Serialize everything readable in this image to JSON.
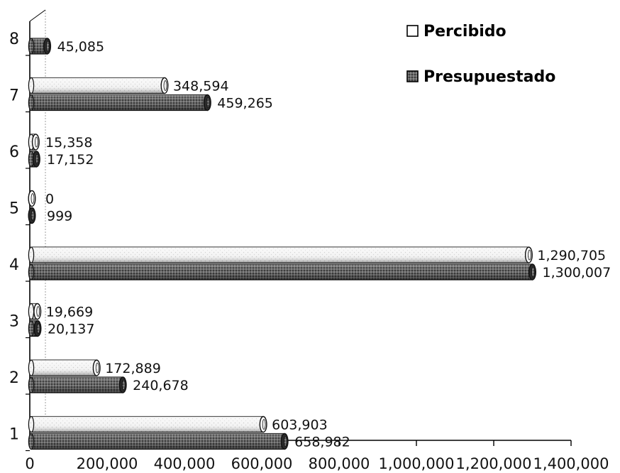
{
  "chart_data": {
    "type": "bar",
    "orientation": "horizontal",
    "categories": [
      "1",
      "2",
      "3",
      "4",
      "5",
      "6",
      "7",
      "8"
    ],
    "series": [
      {
        "name": "Percibido",
        "values": [
          603903,
          172889,
          19669,
          1290705,
          0,
          15358,
          348594,
          null
        ],
        "labels": [
          "603,903",
          "172,889",
          "19,669",
          "1,290,705",
          "0",
          "15,358",
          "348,594",
          ""
        ],
        "color": "#f4f4f4"
      },
      {
        "name": "Presupuestado",
        "values": [
          658982,
          240678,
          20137,
          1300007,
          999,
          17152,
          459265,
          45085
        ],
        "labels": [
          "658,982",
          "240,678",
          "20,137",
          "1,300,007",
          "999",
          "17,152",
          "459,265",
          "45,085"
        ],
        "color": "#5a5a5a"
      }
    ],
    "xlim": [
      0,
      1400000
    ],
    "xticks": [
      0,
      200000,
      400000,
      600000,
      800000,
      1000000,
      1200000,
      1400000
    ],
    "xtick_labels": [
      "0",
      "200,000",
      "400,000",
      "600,000",
      "800,000",
      "1,000,000",
      "1,200,000",
      "1,400,000"
    ],
    "title": "",
    "xlabel": "",
    "ylabel": "",
    "grid": false,
    "legend_position": "top-right",
    "bar_style": "3d-cylinder"
  }
}
